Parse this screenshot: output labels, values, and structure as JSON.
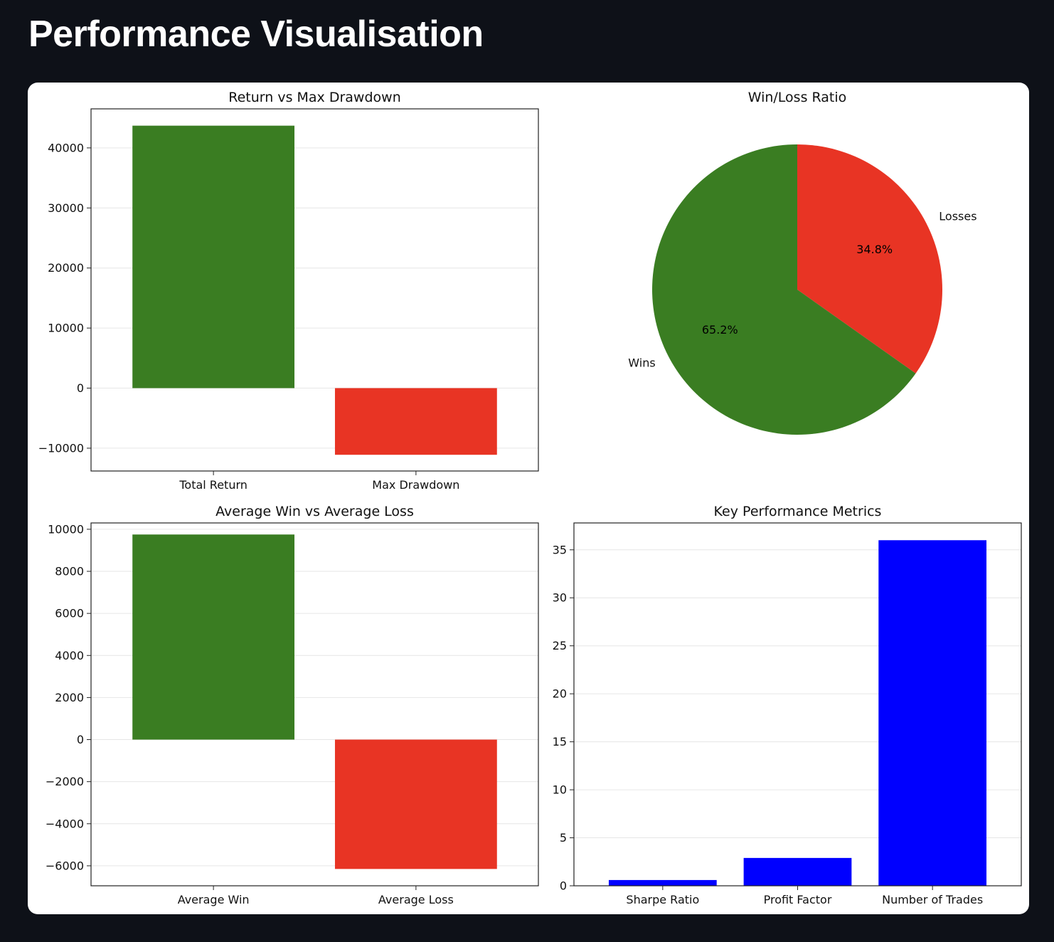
{
  "page": {
    "title": "Performance Visualisation"
  },
  "colors": {
    "positive": "#3a7d22",
    "negative": "#e83424",
    "metric": "#0000ff",
    "background": "#0e1118",
    "grid": "#e6e6e6"
  },
  "chart_data": [
    {
      "id": "return_vs_drawdown",
      "type": "bar",
      "title": "Return vs Max Drawdown",
      "categories": [
        "Total Return",
        "Max Drawdown"
      ],
      "values": [
        43700,
        -11100
      ],
      "colors": [
        "#3a7d22",
        "#e83424"
      ],
      "ylim": [
        -13800,
        46500
      ],
      "yticks": [
        -10000,
        0,
        10000,
        20000,
        30000,
        40000
      ],
      "ytick_labels": [
        "−10000",
        "0",
        "10000",
        "20000",
        "30000",
        "40000"
      ],
      "grid": true
    },
    {
      "id": "win_loss",
      "type": "pie",
      "title": "Win/Loss Ratio",
      "labels": [
        "Losses",
        "Wins"
      ],
      "values": [
        34.8,
        65.2
      ],
      "pct_labels": [
        "34.8%",
        "65.2%"
      ],
      "colors": [
        "#e83424",
        "#3a7d22"
      ],
      "start_angle": 90,
      "direction": "clockwise"
    },
    {
      "id": "avg_win_loss",
      "type": "bar",
      "title": "Average Win vs Average Loss",
      "categories": [
        "Average Win",
        "Average Loss"
      ],
      "values": [
        9750,
        -6150
      ],
      "colors": [
        "#3a7d22",
        "#e83424"
      ],
      "ylim": [
        -6950,
        10300
      ],
      "yticks": [
        -6000,
        -4000,
        -2000,
        0,
        2000,
        4000,
        6000,
        8000,
        10000
      ],
      "ytick_labels": [
        "−6000",
        "−4000",
        "−2000",
        "0",
        "2000",
        "4000",
        "6000",
        "8000",
        "10000"
      ],
      "grid": true
    },
    {
      "id": "key_metrics",
      "type": "bar",
      "title": "Key Performance Metrics",
      "categories": [
        "Sharpe Ratio",
        "Profit Factor",
        "Number of Trades"
      ],
      "values": [
        0.6,
        2.9,
        36
      ],
      "colors": [
        "#0000ff",
        "#0000ff",
        "#0000ff"
      ],
      "ylim": [
        0,
        37.8
      ],
      "yticks": [
        0,
        5,
        10,
        15,
        20,
        25,
        30,
        35
      ],
      "ytick_labels": [
        "0",
        "5",
        "10",
        "15",
        "20",
        "25",
        "30",
        "35"
      ],
      "grid": true
    }
  ]
}
